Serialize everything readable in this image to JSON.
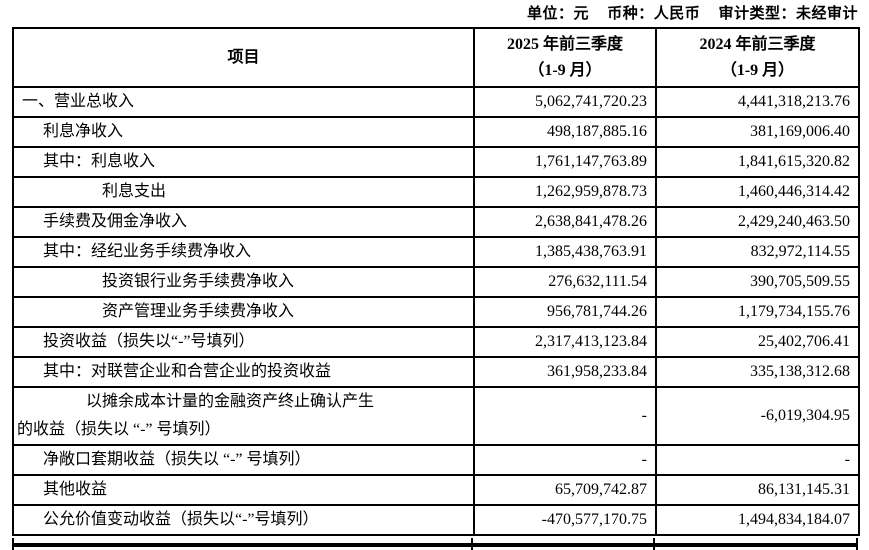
{
  "meta": {
    "unit": "单位：元",
    "currency": "币种：人民币",
    "audit_type": "审计类型：未经审计"
  },
  "table": {
    "header": {
      "item": "项目",
      "col_2025_line1": "2025 年前三季度",
      "col_2025_line2": "（1-9 月）",
      "col_2024_line1": "2024 年前三季度",
      "col_2024_line2": "（1-9 月）"
    },
    "rows": [
      {
        "item": "一、营业总收入",
        "indent": 0,
        "v2025": "5,062,741,720.23",
        "v2024": "4,441,318,213.76"
      },
      {
        "item": "利息净收入",
        "indent": 1,
        "v2025": "498,187,885.16",
        "v2024": "381,169,006.40"
      },
      {
        "item": "其中：利息收入",
        "indent": 1,
        "v2025": "1,761,147,763.89",
        "v2024": "1,841,615,320.82"
      },
      {
        "item": "利息支出",
        "indent": 2,
        "v2025": "1,262,959,878.73",
        "v2024": "1,460,446,314.42"
      },
      {
        "item": "手续费及佣金净收入",
        "indent": 1,
        "v2025": "2,638,841,478.26",
        "v2024": "2,429,240,463.50"
      },
      {
        "item": "其中：经纪业务手续费净收入",
        "indent": 1,
        "v2025": "1,385,438,763.91",
        "v2024": "832,972,114.55"
      },
      {
        "item": "投资银行业务手续费净收入",
        "indent": 2,
        "v2025": "276,632,111.54",
        "v2024": "390,705,509.55"
      },
      {
        "item": "资产管理业务手续费净收入",
        "indent": 2,
        "v2025": "956,781,744.26",
        "v2024": "1,179,734,155.76"
      },
      {
        "item": "投资收益（损失以“-”号填列）",
        "indent": 1,
        "v2025": "2,317,413,123.84",
        "v2024": "25,402,706.41"
      },
      {
        "item": "其中：对联营企业和合营企业的投资收益",
        "indent": 1,
        "v2025": "361,958,233.84",
        "v2024": "335,138,312.68"
      },
      {
        "item": "以摊余成本计量的金融资产终止确认产生",
        "item2": "的收益（损失以 “-” 号填列）",
        "indent": 3,
        "v2025": "-",
        "v2024": "-6,019,304.95"
      },
      {
        "item": "净敞口套期收益（损失以 “-” 号填列）",
        "indent": 1,
        "v2025": "-",
        "v2024": "-"
      },
      {
        "item": "其他收益",
        "indent": 1,
        "v2025": "65,709,742.87",
        "v2024": "86,131,145.31"
      },
      {
        "item": "公允价值变动收益（损失以“-”号填列）",
        "indent": 1,
        "v2025": "-470,577,170.75",
        "v2024": "1,494,834,184.07"
      }
    ]
  }
}
